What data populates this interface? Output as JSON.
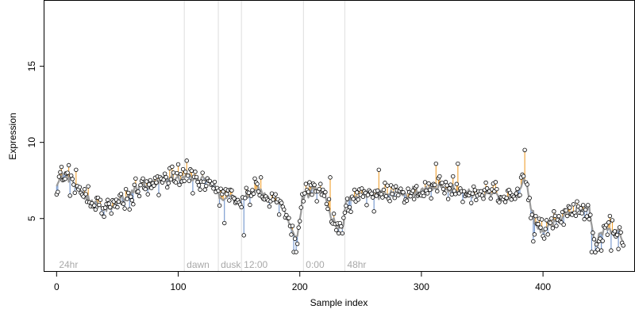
{
  "chart_data": {
    "type": "scatter",
    "title": "",
    "xlabel": "Sample index",
    "ylabel": "Expression",
    "xlim": [
      -10,
      475
    ],
    "ylim": [
      1.5,
      19.3
    ],
    "xticks": [
      0,
      100,
      200,
      300,
      400
    ],
    "yticks": [
      5,
      10,
      15
    ],
    "grid": false,
    "legend": "none",
    "colors": {
      "above_fit": "#f0a030",
      "below_fit": "#6f93cc",
      "fit_line": "#9a9a9a",
      "phase_line": "#dedede",
      "phase_text": "#a8a8a8",
      "point_fill": "#ffffff",
      "point_stroke": "#000000"
    },
    "phases": [
      {
        "x": 0,
        "label": "24hr",
        "line": false
      },
      {
        "x": 105,
        "label": "dawn",
        "line": true
      },
      {
        "x": 133,
        "label": "dusk",
        "line": true
      },
      {
        "x": 152,
        "label": "12:00",
        "line": true
      },
      {
        "x": 203,
        "label": "0:00",
        "line": true
      },
      {
        "x": 237,
        "label": "48hr",
        "line": true
      }
    ],
    "anchors": [
      [
        0,
        7.3
      ],
      [
        6,
        7.9
      ],
      [
        12,
        7.4
      ],
      [
        18,
        6.9
      ],
      [
        24,
        6.5
      ],
      [
        30,
        6.0
      ],
      [
        36,
        5.9
      ],
      [
        42,
        5.6
      ],
      [
        48,
        6.0
      ],
      [
        54,
        6.4
      ],
      [
        60,
        6.7
      ],
      [
        66,
        6.9
      ],
      [
        72,
        7.1
      ],
      [
        78,
        7.3
      ],
      [
        84,
        7.5
      ],
      [
        90,
        7.6
      ],
      [
        96,
        7.7
      ],
      [
        102,
        7.6
      ],
      [
        108,
        7.7
      ],
      [
        114,
        7.6
      ],
      [
        120,
        7.6
      ],
      [
        126,
        7.4
      ],
      [
        130,
        7.3
      ],
      [
        134,
        6.3
      ],
      [
        140,
        6.4
      ],
      [
        146,
        6.3
      ],
      [
        152,
        6.3
      ],
      [
        158,
        6.6
      ],
      [
        164,
        6.9
      ],
      [
        170,
        6.6
      ],
      [
        176,
        6.3
      ],
      [
        182,
        6.1
      ],
      [
        186,
        5.7
      ],
      [
        190,
        5.1
      ],
      [
        194,
        4.1
      ],
      [
        198,
        3.7
      ],
      [
        202,
        6.2
      ],
      [
        208,
        6.9
      ],
      [
        214,
        6.9
      ],
      [
        220,
        6.7
      ],
      [
        226,
        5.1
      ],
      [
        230,
        4.6
      ],
      [
        236,
        4.4
      ],
      [
        238,
        6.2
      ],
      [
        244,
        6.3
      ],
      [
        250,
        6.5
      ],
      [
        256,
        6.6
      ],
      [
        262,
        6.7
      ],
      [
        268,
        6.7
      ],
      [
        274,
        6.6
      ],
      [
        280,
        6.6
      ],
      [
        286,
        6.5
      ],
      [
        292,
        6.6
      ],
      [
        298,
        6.8
      ],
      [
        304,
        7.0
      ],
      [
        310,
        7.1
      ],
      [
        316,
        7.1
      ],
      [
        322,
        7.0
      ],
      [
        328,
        6.9
      ],
      [
        334,
        6.8
      ],
      [
        340,
        6.6
      ],
      [
        346,
        6.4
      ],
      [
        352,
        6.5
      ],
      [
        358,
        6.7
      ],
      [
        364,
        6.4
      ],
      [
        370,
        6.2
      ],
      [
        376,
        6.6
      ],
      [
        382,
        7.2
      ],
      [
        386,
        7.5
      ],
      [
        390,
        5.9
      ],
      [
        394,
        4.5
      ],
      [
        398,
        4.1
      ],
      [
        404,
        4.4
      ],
      [
        410,
        4.8
      ],
      [
        416,
        5.0
      ],
      [
        422,
        5.4
      ],
      [
        428,
        5.6
      ],
      [
        434,
        5.7
      ],
      [
        438,
        5.5
      ],
      [
        442,
        3.5
      ],
      [
        446,
        3.6
      ],
      [
        450,
        4.3
      ],
      [
        454,
        4.4
      ],
      [
        458,
        3.9
      ],
      [
        462,
        4.3
      ],
      [
        466,
        3.2
      ]
    ],
    "outliers": [
      [
        10,
        8.5
      ],
      [
        11,
        6.5
      ],
      [
        16,
        8.2
      ],
      [
        60,
        5.6
      ],
      [
        93,
        8.3
      ],
      [
        107,
        8.8
      ],
      [
        138,
        4.7
      ],
      [
        154,
        3.9
      ],
      [
        168,
        7.7
      ],
      [
        195,
        2.8
      ],
      [
        197,
        2.8
      ],
      [
        225,
        7.7
      ],
      [
        265,
        8.2
      ],
      [
        312,
        8.6
      ],
      [
        330,
        8.6
      ],
      [
        385,
        9.5
      ],
      [
        392,
        3.5
      ],
      [
        440,
        2.8
      ],
      [
        448,
        2.9
      ],
      [
        456,
        2.9
      ],
      [
        462,
        3.0
      ]
    ],
    "n_points": 467,
    "noise_sd": 0.6,
    "seed": 12
  }
}
